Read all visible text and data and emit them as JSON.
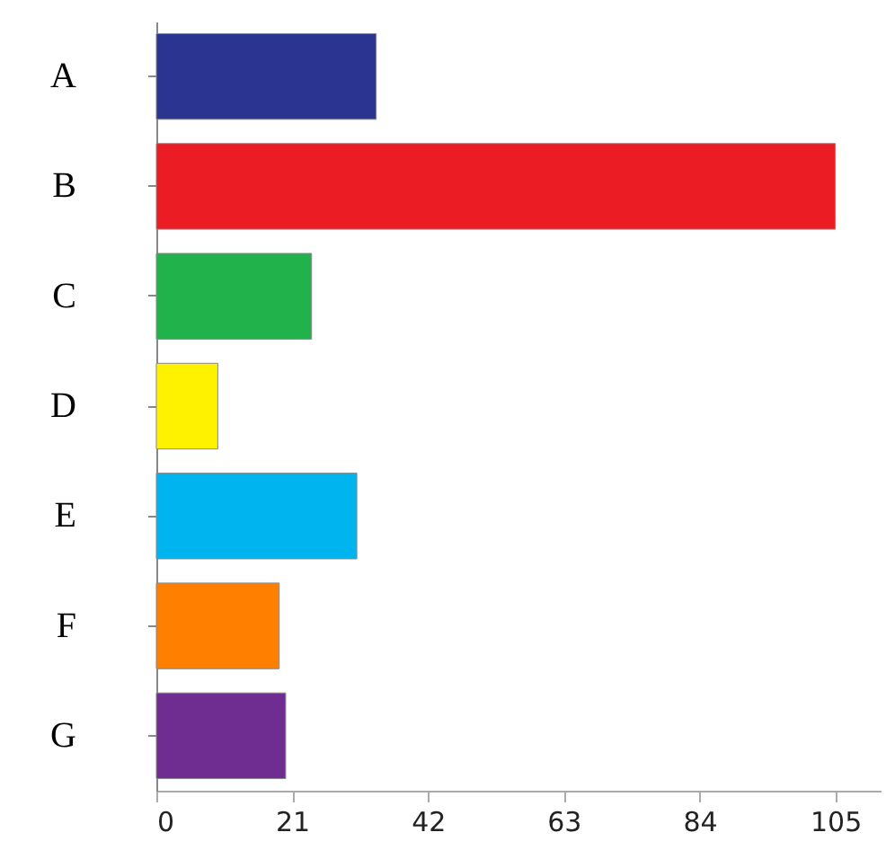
{
  "chart_data": {
    "type": "bar",
    "orientation": "horizontal",
    "categories": [
      "A",
      "B",
      "C",
      "D",
      "E",
      "F",
      "G"
    ],
    "values": [
      34,
      105,
      24,
      9.5,
      31,
      19,
      20
    ],
    "colors": [
      "#2b3490",
      "#ec1c24",
      "#22b24c",
      "#fff200",
      "#00b4ef",
      "#ff7f00",
      "#6f2c91"
    ],
    "xlim": [
      0,
      112
    ],
    "xticks": [
      0,
      21,
      42,
      63,
      84,
      105
    ],
    "grid": false
  }
}
